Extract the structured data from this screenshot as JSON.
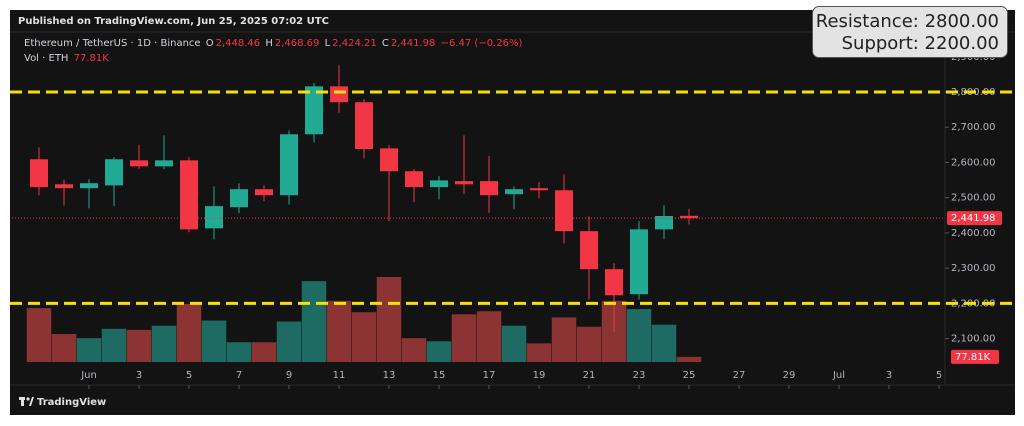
{
  "published": "Published on TradingView.com, Jun 25, 2025 07:02 UTC",
  "brand": "TradingView",
  "legend": {
    "symbol": "Ethereum / TetherUS · 1D · Binance",
    "o_key": "O",
    "open": "2,448.46",
    "h_key": "H",
    "high": "2,468.69",
    "l_key": "L",
    "low": "2,424.21",
    "c_key": "C",
    "close": "2,441.98",
    "change": "−6.47 (−0.26%)",
    "vol_title": "Vol · ETH",
    "vol_value": "77.81K"
  },
  "chart_data": {
    "type": "candlestick",
    "x": [
      -1,
      0,
      1,
      2,
      3,
      4,
      5,
      6,
      7,
      8,
      9,
      10,
      11,
      12,
      13,
      14,
      15,
      16,
      17,
      18,
      19,
      20,
      21,
      22,
      23,
      24,
      25
    ],
    "open": [
      2609,
      2538,
      2527,
      2535,
      2606,
      2589,
      2606,
      2413,
      2473,
      2524,
      2507,
      2680,
      2816,
      2771,
      2640,
      2575,
      2530,
      2547,
      2547,
      2510,
      2527,
      2521,
      2405,
      2297,
      2226,
      2410,
      2448.46
    ],
    "high": [
      2643,
      2552,
      2552,
      2615,
      2649,
      2677,
      2615,
      2532,
      2541,
      2535,
      2691,
      2825,
      2876,
      2780,
      2649,
      2581,
      2561,
      2677,
      2618,
      2532,
      2544,
      2566,
      2447,
      2314,
      2433,
      2478,
      2468.69
    ],
    "low": [
      2507,
      2478,
      2470,
      2476,
      2581,
      2581,
      2402,
      2382,
      2456,
      2490,
      2481,
      2657,
      2740,
      2612,
      2433,
      2487,
      2495,
      2510,
      2456,
      2467,
      2498,
      2370,
      2211,
      2118,
      2211,
      2382,
      2424.21
    ],
    "close": [
      2530,
      2527,
      2541,
      2609,
      2589,
      2606,
      2410,
      2476,
      2524,
      2507,
      2680,
      2816,
      2771,
      2638,
      2575,
      2530,
      2549,
      2538,
      2507,
      2524,
      2521,
      2405,
      2297,
      2223,
      2410,
      2448,
      2441.98
    ],
    "volume": [
      809,
      420,
      358,
      498,
      482,
      545,
      871,
      622,
      296,
      296,
      607,
      1214,
      918,
      747,
      1276,
      358,
      311,
      716,
      762,
      545,
      280,
      669,
      529,
      918,
      794,
      560,
      77.81
    ],
    "up_color": "#22ab94",
    "down_color": "#f23645",
    "up_volume_color": "#1e6b63",
    "down_volume_color": "#8c3434",
    "xlim": [
      -2,
      35.24
    ],
    "xticks": [
      {
        "value": 1,
        "label": "Jun"
      },
      3,
      5,
      7,
      9,
      11,
      13,
      15,
      17,
      19,
      21,
      23,
      25,
      27,
      29,
      {
        "value": 31,
        "label": "Jul"
      },
      {
        "value": 33,
        "label": "3"
      },
      {
        "value": 35,
        "label": "5"
      }
    ],
    "ylim": [
      2025,
      2905
    ],
    "yticks": [
      {
        "value": 2100,
        "label": "2,100.00"
      },
      {
        "value": 2200,
        "label": "2,200.00"
      },
      {
        "value": 2300,
        "label": "2,300.00"
      },
      {
        "value": 2400,
        "label": "2,400.00"
      },
      {
        "value": 2500,
        "label": "2,500.00"
      },
      {
        "value": 2600,
        "label": "2,600.00"
      },
      {
        "value": 2700,
        "label": "2,700.00"
      },
      {
        "value": 2800,
        "label": "2,800.00"
      },
      {
        "value": 2900,
        "label": "2,900.00"
      }
    ],
    "last_price": {
      "value": 2441.98,
      "label": "2,441.98"
    },
    "levels": [
      {
        "label": "Resistance: 2800.00",
        "value": 2800
      },
      {
        "label": "Support: 2200.00",
        "value": 2200
      }
    ],
    "level_color": "#f5e10a"
  }
}
